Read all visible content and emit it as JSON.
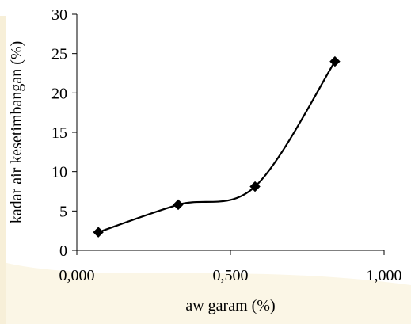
{
  "chart_data": {
    "type": "line",
    "title": "",
    "xlabel": "aw garam (%)",
    "ylabel": "kadar air kesetimbangan (%)",
    "xlim": [
      0,
      1
    ],
    "ylim": [
      0,
      30
    ],
    "x_ticks": [
      0,
      0.5,
      1
    ],
    "x_tick_labels": [
      "0,000",
      "0,500",
      "1,000"
    ],
    "y_ticks": [
      0,
      5,
      10,
      15,
      20,
      25,
      30
    ],
    "y_tick_labels": [
      "0",
      "5",
      "10",
      "15",
      "20",
      "25",
      "30"
    ],
    "grid": false,
    "smooth": true,
    "series": [
      {
        "x": [
          0.07,
          0.33,
          0.58,
          0.84
        ],
        "y": [
          2.3,
          5.8,
          8.1,
          24.0
        ],
        "marker": "diamond",
        "color": "#000000"
      }
    ]
  }
}
